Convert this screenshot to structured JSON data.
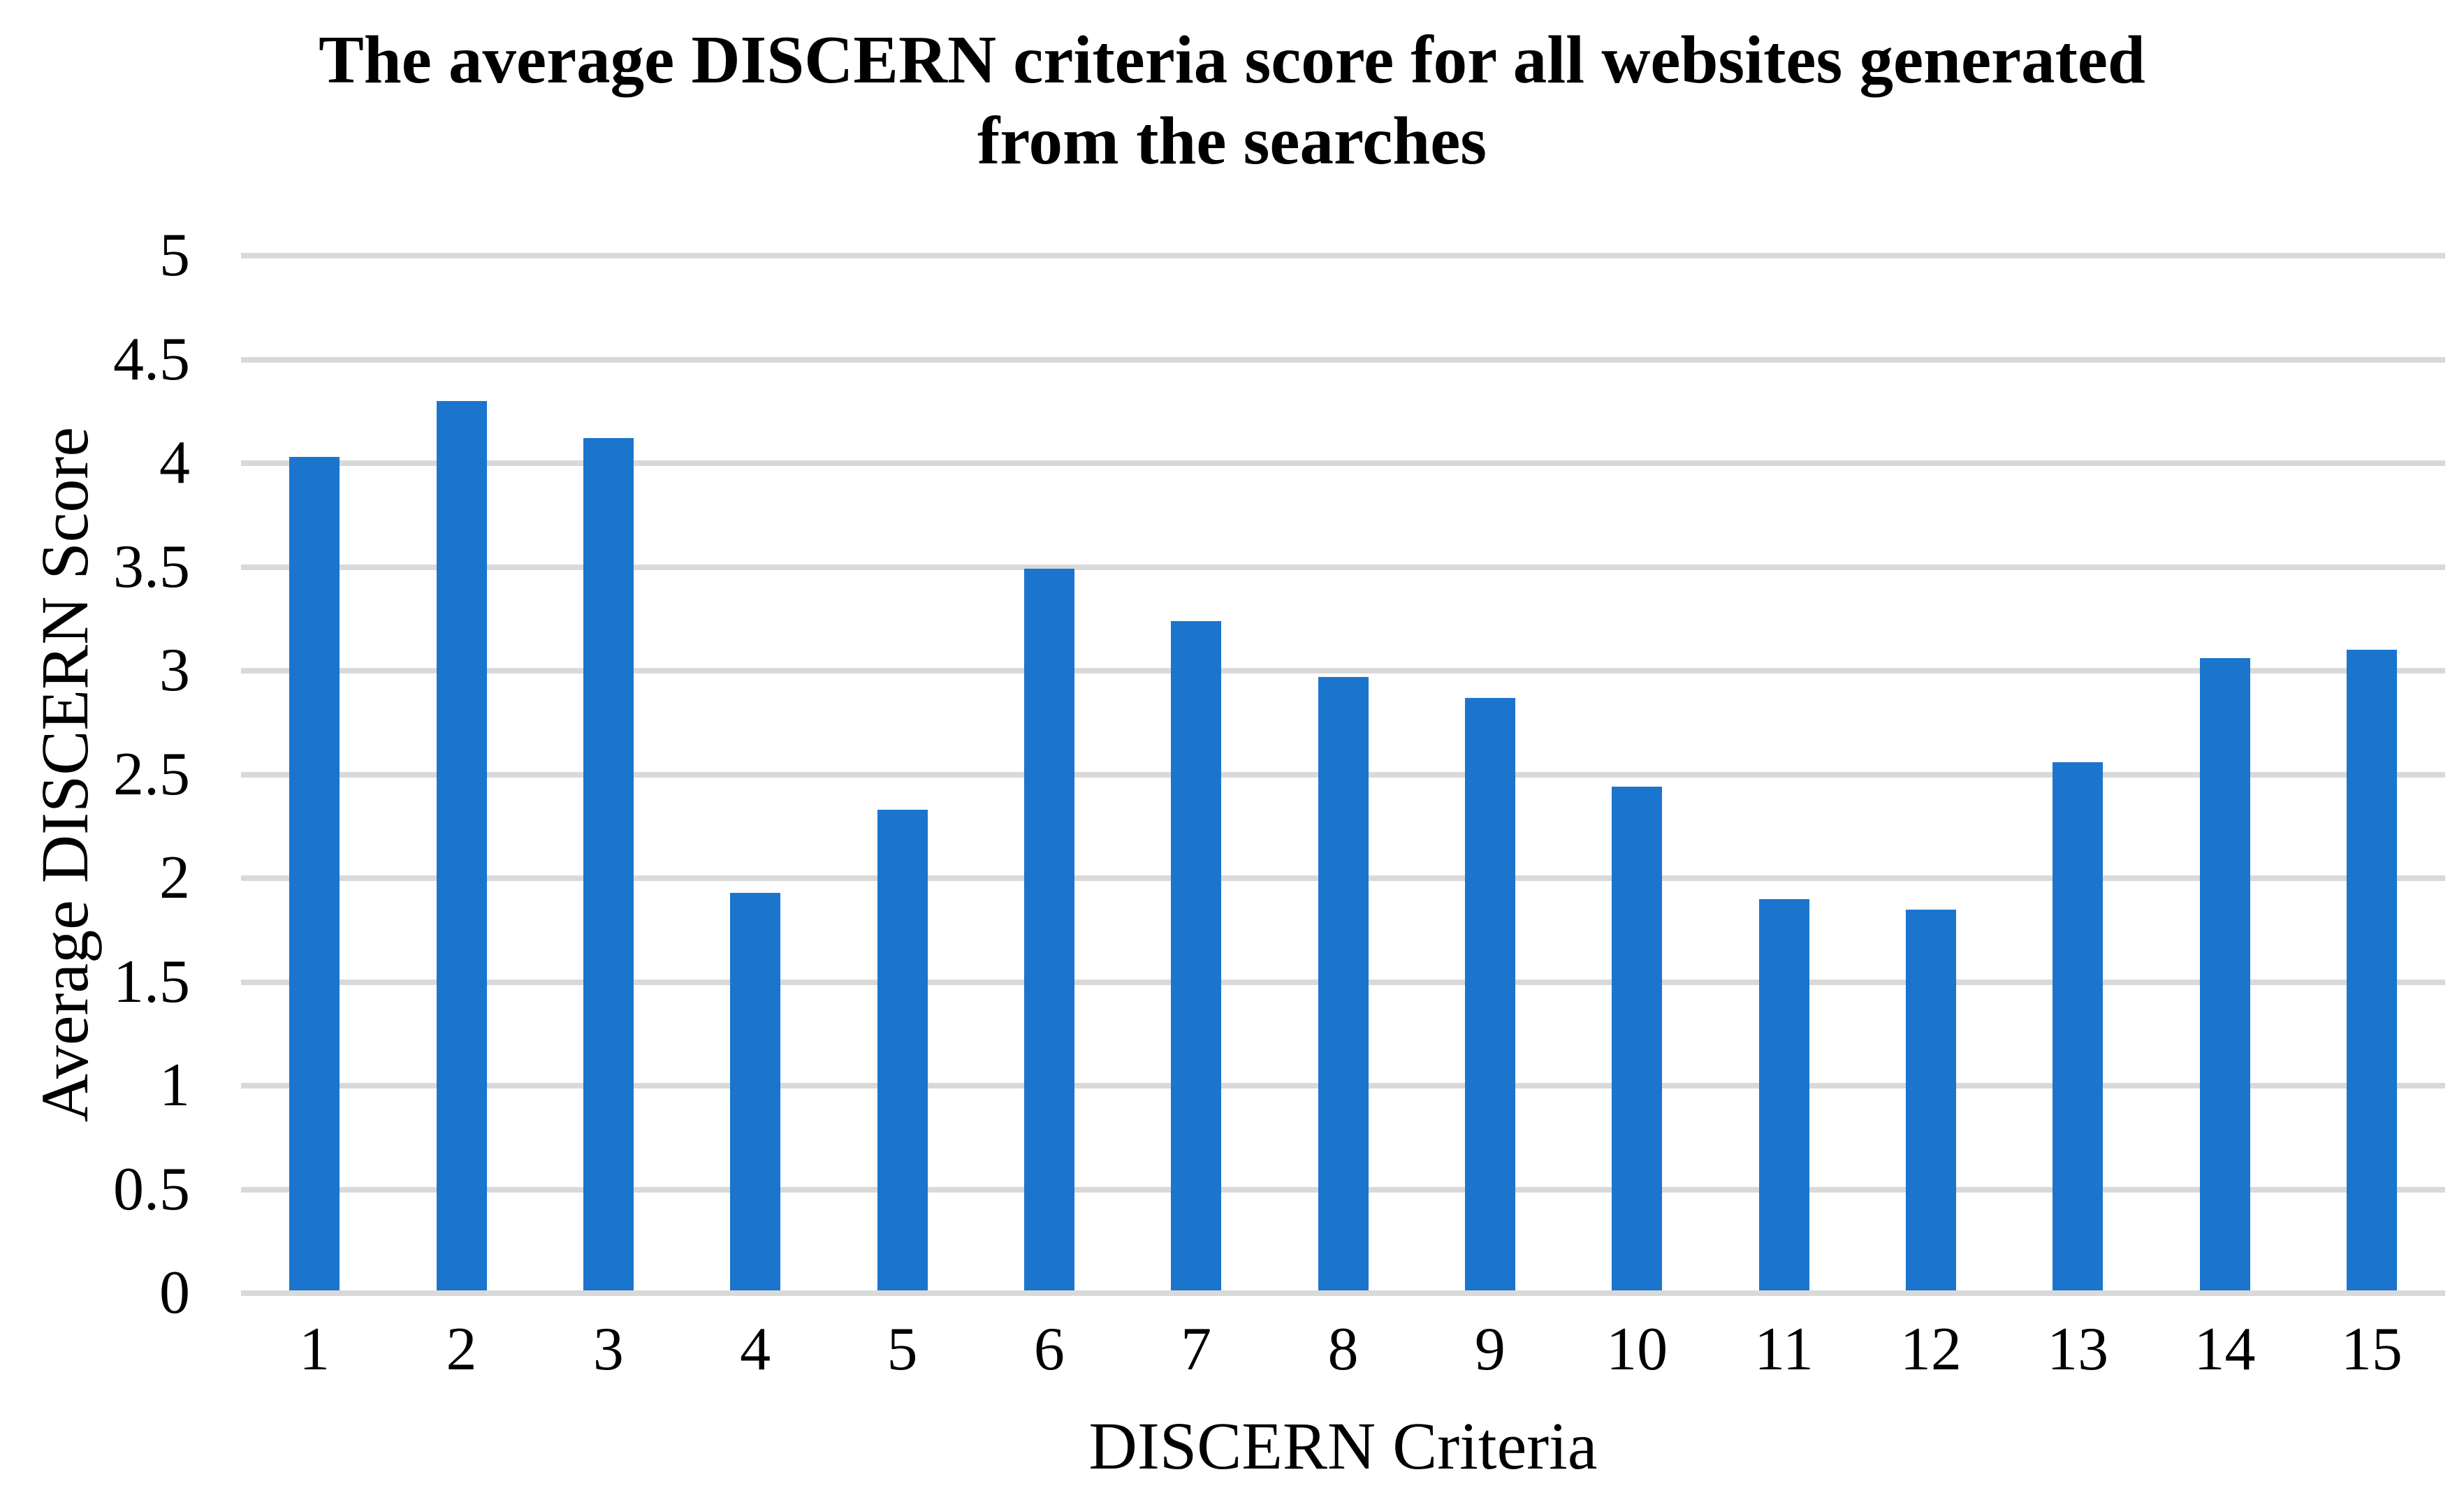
{
  "chart_data": {
    "type": "bar",
    "title": "The average DISCERN criteria score for all websites generated\nfrom the searches",
    "xlabel": "DISCERN Criteria",
    "ylabel": "Average DISCERN Score",
    "categories": [
      "1",
      "2",
      "3",
      "4",
      "5",
      "6",
      "7",
      "8",
      "9",
      "10",
      "11",
      "12",
      "13",
      "14",
      "15"
    ],
    "values": [
      4.03,
      4.3,
      4.12,
      1.93,
      2.33,
      3.49,
      3.24,
      2.97,
      2.87,
      2.44,
      1.9,
      1.85,
      2.56,
      3.06,
      3.1
    ],
    "ylim": [
      0,
      5
    ],
    "ytick_step": 0.5,
    "yticks": [
      "0",
      "0.5",
      "1",
      "1.5",
      "2",
      "2.5",
      "3",
      "3.5",
      "4",
      "4.5",
      "5"
    ],
    "grid": true,
    "legend_visible": false,
    "bar_color": "#1B75CD",
    "gridline_color": "#D9D9D9",
    "text_color": "#000000",
    "background_color": "#FFFFFF"
  }
}
